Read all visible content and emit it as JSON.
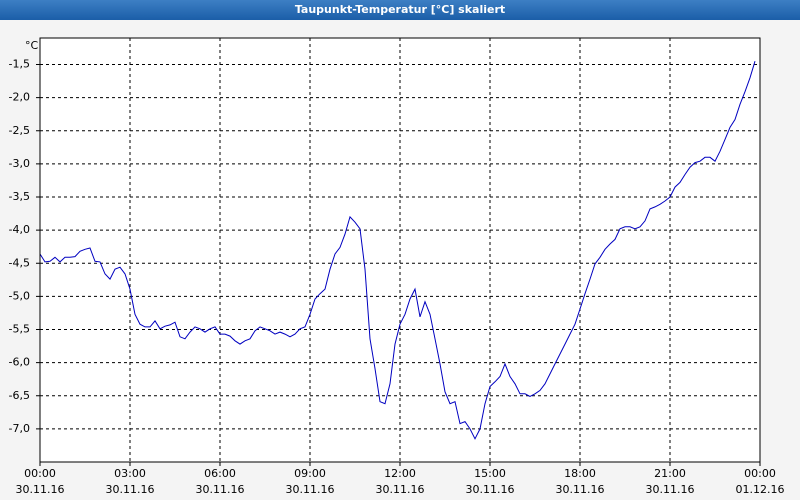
{
  "chart_data": {
    "type": "line",
    "title": "Taupunkt-Temperatur [°C] skaliert",
    "y_label": "°C",
    "xlim": [
      0,
      1440
    ],
    "xticks": [
      {
        "value": 0,
        "label": "00:00",
        "date": "30.11.16"
      },
      {
        "value": 180,
        "label": "03:00",
        "date": "30.11.16"
      },
      {
        "value": 360,
        "label": "06:00",
        "date": "30.11.16"
      },
      {
        "value": 540,
        "label": "09:00",
        "date": "30.11.16"
      },
      {
        "value": 720,
        "label": "12:00",
        "date": "30.11.16"
      },
      {
        "value": 900,
        "label": "15:00",
        "date": "30.11.16"
      },
      {
        "value": 1080,
        "label": "18:00",
        "date": "30.11.16"
      },
      {
        "value": 1260,
        "label": "21:00",
        "date": "30.11.16"
      },
      {
        "value": 1440,
        "label": "00:00",
        "date": "01.12.16"
      }
    ],
    "ylim": [
      -7.5,
      -1.1
    ],
    "yticks": [
      {
        "value": -1.5,
        "label": "-1,5"
      },
      {
        "value": -2.0,
        "label": "-2,0"
      },
      {
        "value": -2.5,
        "label": "-2,5"
      },
      {
        "value": -3.0,
        "label": "-3,0"
      },
      {
        "value": -3.5,
        "label": "-3,5"
      },
      {
        "value": -4.0,
        "label": "-4,0"
      },
      {
        "value": -4.5,
        "label": "-4,5"
      },
      {
        "value": -5.0,
        "label": "-5,0"
      },
      {
        "value": -5.5,
        "label": "-5,5"
      },
      {
        "value": -6.0,
        "label": "-6,0"
      },
      {
        "value": -6.5,
        "label": "-6,5"
      },
      {
        "value": -7.0,
        "label": "-7,0"
      }
    ],
    "grid": true,
    "color": "#0000c0",
    "x": [
      0,
      10,
      20,
      30,
      40,
      50,
      60,
      70,
      80,
      90,
      100,
      110,
      120,
      130,
      140,
      150,
      160,
      170,
      180,
      190,
      200,
      210,
      220,
      230,
      240,
      250,
      260,
      270,
      280,
      290,
      300,
      310,
      320,
      330,
      340,
      350,
      360,
      370,
      380,
      390,
      400,
      410,
      420,
      430,
      440,
      450,
      460,
      470,
      480,
      490,
      500,
      510,
      520,
      530,
      540,
      550,
      560,
      570,
      580,
      590,
      600,
      610,
      620,
      630,
      640,
      650,
      660,
      670,
      680,
      690,
      700,
      710,
      720,
      730,
      740,
      750,
      760,
      770,
      780,
      790,
      800,
      810,
      820,
      830,
      840,
      850,
      860,
      870,
      880,
      890,
      900,
      910,
      920,
      930,
      940,
      950,
      960,
      970,
      980,
      990,
      1000,
      1010,
      1020,
      1030,
      1040,
      1050,
      1060,
      1070,
      1080,
      1090,
      1100,
      1110,
      1120,
      1130,
      1140,
      1150,
      1160,
      1170,
      1180,
      1190,
      1200,
      1210,
      1220,
      1230,
      1240,
      1250,
      1260,
      1270,
      1280,
      1290,
      1300,
      1310,
      1320,
      1330,
      1340,
      1350,
      1360,
      1370,
      1380,
      1390,
      1400,
      1410,
      1420,
      1430
    ],
    "values": [
      -4.36,
      -4.48,
      -4.47,
      -4.41,
      -4.48,
      -4.41,
      -4.41,
      -4.4,
      -4.32,
      -4.29,
      -4.27,
      -4.47,
      -4.48,
      -4.66,
      -4.74,
      -4.59,
      -4.56,
      -4.66,
      -4.89,
      -5.27,
      -5.42,
      -5.46,
      -5.46,
      -5.37,
      -5.49,
      -5.45,
      -5.43,
      -5.39,
      -5.61,
      -5.64,
      -5.54,
      -5.46,
      -5.49,
      -5.54,
      -5.49,
      -5.46,
      -5.57,
      -5.57,
      -5.6,
      -5.67,
      -5.72,
      -5.67,
      -5.64,
      -5.52,
      -5.46,
      -5.49,
      -5.52,
      -5.57,
      -5.54,
      -5.57,
      -5.61,
      -5.57,
      -5.49,
      -5.46,
      -5.27,
      -5.04,
      -4.96,
      -4.89,
      -4.59,
      -4.36,
      -4.26,
      -4.06,
      -3.8,
      -3.88,
      -3.98,
      -4.59,
      -5.64,
      -6.09,
      -6.59,
      -6.62,
      -6.32,
      -5.72,
      -5.42,
      -5.27,
      -5.04,
      -4.89,
      -5.31,
      -5.08,
      -5.27,
      -5.64,
      -6.02,
      -6.44,
      -6.62,
      -6.59,
      -6.92,
      -6.89,
      -7.0,
      -7.15,
      -7.0,
      -6.62,
      -6.36,
      -6.29,
      -6.21,
      -6.02,
      -6.21,
      -6.32,
      -6.47,
      -6.47,
      -6.51,
      -6.47,
      -6.42,
      -6.32,
      -6.17,
      -6.02,
      -5.87,
      -5.72,
      -5.57,
      -5.42,
      -5.19,
      -4.96,
      -4.74,
      -4.51,
      -4.41,
      -4.29,
      -4.21,
      -4.14,
      -3.98,
      -3.95,
      -3.95,
      -3.98,
      -3.95,
      -3.86,
      -3.68,
      -3.65,
      -3.61,
      -3.56,
      -3.5,
      -3.35,
      -3.28,
      -3.16,
      -3.05,
      -2.98,
      -2.96,
      -2.9,
      -2.9,
      -2.96,
      -2.81,
      -2.63,
      -2.45,
      -2.33,
      -2.1,
      -1.91,
      -1.7,
      -1.45
    ]
  }
}
